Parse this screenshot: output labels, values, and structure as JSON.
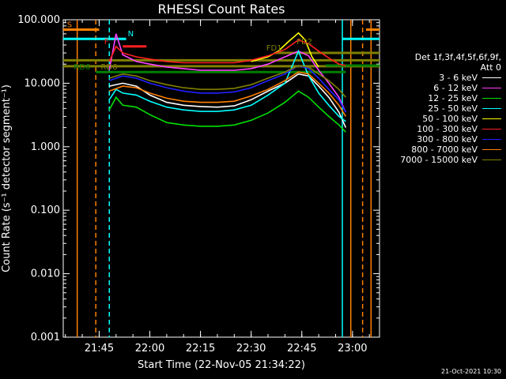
{
  "chart_data": {
    "type": "line",
    "title": "RHESSI Count Rates",
    "xlabel": "Start Time (22-Nov-05 21:34:22)",
    "ylabel": "Count Rate (s⁻¹ detector segment⁻¹)",
    "yscale": "log",
    "ylim": [
      0.001,
      100
    ],
    "xlim": [
      "21:34:22",
      "23:08"
    ],
    "yticks": [
      "0.001",
      "0.010",
      "0.100",
      "1.000",
      "10.000",
      "100.000"
    ],
    "xticks": [
      {
        "t": "21:45",
        "label": "21:45"
      },
      {
        "t": "22:00",
        "label": "22:00"
      },
      {
        "t": "22:15",
        "label": "22:15"
      },
      {
        "t": "22:30",
        "label": "22:30"
      },
      {
        "t": "22:45",
        "label": "22:45"
      },
      {
        "t": "23:00",
        "label": "23:00"
      }
    ],
    "legend_header": [
      "Det 1f,3f,4f,5f,6f,9f,",
      "Att 0"
    ],
    "legend_position": "right",
    "series": [
      {
        "name": "3 - 6 keV",
        "color": "#ffffff",
        "points": [
          [
            "21:48",
            9
          ],
          [
            "21:52",
            10
          ],
          [
            "21:56",
            9
          ],
          [
            "22:00",
            6.5
          ],
          [
            "22:05",
            5
          ],
          [
            "22:10",
            4.5
          ],
          [
            "22:15",
            4.3
          ],
          [
            "22:20",
            4.2
          ],
          [
            "22:25",
            4.4
          ],
          [
            "22:30",
            5.5
          ],
          [
            "22:35",
            7.5
          ],
          [
            "22:40",
            10
          ],
          [
            "22:44",
            14
          ],
          [
            "22:47",
            13
          ],
          [
            "22:50",
            9
          ],
          [
            "22:53",
            6
          ],
          [
            "22:56",
            3.5
          ],
          [
            "22:58",
            2
          ]
        ]
      },
      {
        "name": "6 - 12 keV",
        "color": "#ff40ff",
        "points": [
          [
            "21:48",
            16
          ],
          [
            "21:50",
            60
          ],
          [
            "21:52",
            28
          ],
          [
            "21:56",
            22
          ],
          [
            "22:00",
            20
          ],
          [
            "22:05",
            18
          ],
          [
            "22:10",
            17
          ],
          [
            "22:15",
            16
          ],
          [
            "22:20",
            16
          ],
          [
            "22:25",
            16
          ],
          [
            "22:30",
            17
          ],
          [
            "22:35",
            20
          ],
          [
            "22:40",
            26
          ],
          [
            "22:44",
            32
          ],
          [
            "22:47",
            27
          ],
          [
            "22:50",
            16
          ],
          [
            "22:53",
            10
          ],
          [
            "22:56",
            6
          ],
          [
            "22:58",
            3.5
          ]
        ]
      },
      {
        "name": "12 - 25 keV",
        "color": "#00e000",
        "points": [
          [
            "21:48",
            3.8
          ],
          [
            "21:50",
            6
          ],
          [
            "21:52",
            4.5
          ],
          [
            "21:56",
            4.2
          ],
          [
            "22:00",
            3.2
          ],
          [
            "22:05",
            2.4
          ],
          [
            "22:10",
            2.2
          ],
          [
            "22:15",
            2.1
          ],
          [
            "22:20",
            2.1
          ],
          [
            "22:25",
            2.2
          ],
          [
            "22:30",
            2.6
          ],
          [
            "22:35",
            3.4
          ],
          [
            "22:40",
            5
          ],
          [
            "22:44",
            7.5
          ],
          [
            "22:47",
            6
          ],
          [
            "22:50",
            4.2
          ],
          [
            "22:53",
            3
          ],
          [
            "22:56",
            2.2
          ],
          [
            "22:58",
            1.7
          ]
        ]
      },
      {
        "name": "25 - 50 keV",
        "color": "#00ffff",
        "points": [
          [
            "21:48",
            5.5
          ],
          [
            "21:50",
            8
          ],
          [
            "21:52",
            7
          ],
          [
            "21:56",
            6.5
          ],
          [
            "22:00",
            5.2
          ],
          [
            "22:05",
            4.2
          ],
          [
            "22:10",
            3.8
          ],
          [
            "22:15",
            3.6
          ],
          [
            "22:20",
            3.6
          ],
          [
            "22:25",
            3.8
          ],
          [
            "22:30",
            4.5
          ],
          [
            "22:35",
            6.5
          ],
          [
            "22:40",
            10
          ],
          [
            "22:44",
            32
          ],
          [
            "22:47",
            13
          ],
          [
            "22:50",
            7
          ],
          [
            "22:53",
            4.5
          ],
          [
            "22:56",
            3
          ],
          [
            "22:58",
            2.5
          ]
        ]
      },
      {
        "name": "50 - 100 keV",
        "color": "#ffff00",
        "points": [
          [
            "22:30",
            22
          ],
          [
            "22:35",
            26
          ],
          [
            "22:38",
            32
          ],
          [
            "22:41",
            45
          ],
          [
            "22:44",
            62
          ],
          [
            "22:46",
            48
          ],
          [
            "22:48",
            26
          ],
          [
            "22:50",
            18
          ]
        ]
      },
      {
        "name": "100 - 300 keV",
        "color": "#ff2020",
        "points": [
          [
            "21:48",
            22
          ],
          [
            "21:50",
            38
          ],
          [
            "21:52",
            30
          ],
          [
            "21:56",
            26
          ],
          [
            "22:00",
            24
          ],
          [
            "22:05",
            22
          ],
          [
            "22:10",
            21
          ],
          [
            "22:15",
            21
          ],
          [
            "22:20",
            21
          ],
          [
            "22:25",
            21
          ],
          [
            "22:30",
            23
          ],
          [
            "22:35",
            27
          ],
          [
            "22:40",
            34
          ],
          [
            "22:44",
            48
          ],
          [
            "22:47",
            42
          ],
          [
            "22:50",
            32
          ],
          [
            "22:53",
            25
          ],
          [
            "22:56",
            20
          ],
          [
            "22:58",
            19
          ]
        ]
      },
      {
        "name": "300 - 800 keV",
        "color": "#2020ff",
        "points": [
          [
            "21:48",
            11
          ],
          [
            "21:52",
            13
          ],
          [
            "21:56",
            12
          ],
          [
            "22:00",
            10
          ],
          [
            "22:05",
            8.5
          ],
          [
            "22:10",
            7.5
          ],
          [
            "22:15",
            7
          ],
          [
            "22:20",
            7
          ],
          [
            "22:25",
            7.3
          ],
          [
            "22:30",
            8.5
          ],
          [
            "22:35",
            11
          ],
          [
            "22:40",
            14
          ],
          [
            "22:44",
            19
          ],
          [
            "22:47",
            17
          ],
          [
            "22:50",
            12
          ],
          [
            "22:53",
            8
          ],
          [
            "22:56",
            5.5
          ],
          [
            "22:58",
            3.5
          ]
        ]
      },
      {
        "name": "800 - 7000 keV",
        "color": "#ff8000",
        "points": [
          [
            "21:48",
            7.5
          ],
          [
            "21:52",
            9
          ],
          [
            "21:56",
            8.5
          ],
          [
            "22:00",
            7
          ],
          [
            "22:05",
            5.8
          ],
          [
            "22:10",
            5.2
          ],
          [
            "22:15",
            5
          ],
          [
            "22:20",
            5
          ],
          [
            "22:25",
            5.2
          ],
          [
            "22:30",
            6.3
          ],
          [
            "22:35",
            8
          ],
          [
            "22:40",
            11
          ],
          [
            "22:44",
            15
          ],
          [
            "22:47",
            14
          ],
          [
            "22:50",
            10
          ],
          [
            "22:53",
            7
          ],
          [
            "22:56",
            4.5
          ],
          [
            "22:58",
            3
          ]
        ]
      },
      {
        "name": "7000 - 15000 keV",
        "color": "#808000",
        "points": [
          [
            "21:48",
            12
          ],
          [
            "21:52",
            14
          ],
          [
            "21:56",
            13
          ],
          [
            "22:00",
            11
          ],
          [
            "22:05",
            9.5
          ],
          [
            "22:10",
            8.5
          ],
          [
            "22:15",
            8
          ],
          [
            "22:20",
            8
          ],
          [
            "22:25",
            8.3
          ],
          [
            "22:30",
            9.5
          ],
          [
            "22:35",
            12
          ],
          [
            "22:40",
            15
          ],
          [
            "22:44",
            19
          ],
          [
            "22:47",
            18
          ],
          [
            "22:50",
            14
          ],
          [
            "22:53",
            11
          ],
          [
            "22:56",
            8
          ],
          [
            "22:58",
            6
          ]
        ]
      }
    ],
    "annotations": [
      {
        "text": "S",
        "color": "#ff8000",
        "t": "21:35"
      },
      {
        "text": "N",
        "color": "#00ffff",
        "t": "21:53"
      },
      {
        "text": "F",
        "color": "#ff2020",
        "t": "21:46"
      },
      {
        "text": "FD1",
        "color": "#808000",
        "t": "22:34"
      },
      {
        "text": "FD2",
        "color": "#808000",
        "t": "22:43"
      },
      {
        "text": "RD6",
        "color": "#008000",
        "t": "21:37"
      },
      {
        "text": "RD6",
        "color": "#808000",
        "t": "21:45"
      }
    ],
    "flag_lines": [
      {
        "name": "S",
        "color": "#ff8000",
        "y": 70,
        "segments": [
          [
            "21:34:22",
            "21:45"
          ],
          [
            "23:04",
            "23:08"
          ]
        ]
      },
      {
        "name": "N",
        "color": "#00ffff",
        "y": 50,
        "segments": [
          [
            "21:34:22",
            "21:53"
          ],
          [
            "22:57",
            "23:08"
          ]
        ]
      },
      {
        "name": "F",
        "color": "#ff2020",
        "y": 38,
        "segments": [
          [
            "21:52",
            "21:59"
          ]
        ]
      },
      {
        "name": "FD1",
        "color": "#808000",
        "y": 30,
        "segments": [
          [
            "22:37",
            "23:08"
          ]
        ]
      },
      {
        "name": "RD6-olive",
        "color": "#808000",
        "y": 23,
        "segments": [
          [
            "21:34:22",
            "23:08"
          ]
        ]
      },
      {
        "name": "RD6-mid",
        "color": "#808000",
        "y": 18.5,
        "segments": [
          [
            "21:34:22",
            "23:08"
          ]
        ]
      },
      {
        "name": "RD6",
        "color": "#008000",
        "y": 15,
        "segments": [
          [
            "21:44",
            "22:58"
          ]
        ]
      },
      {
        "name": "RD6-right",
        "color": "#008000",
        "y": 19,
        "segments": [
          [
            "22:52",
            "23:08"
          ]
        ]
      }
    ],
    "vlines": [
      {
        "t": "21:38:30",
        "color": "#ff8000",
        "dash": false
      },
      {
        "t": "21:44",
        "color": "#ff8000",
        "dash": true
      },
      {
        "t": "21:48",
        "color": "#00ffff",
        "dash": true
      },
      {
        "t": "22:57",
        "color": "#00ffff",
        "dash": false
      },
      {
        "t": "22:59:30",
        "color": "#ff8000",
        "dash": false
      },
      {
        "t": "23:03",
        "color": "#ff8000",
        "dash": true
      },
      {
        "t": "23:05:30",
        "color": "#ff8000",
        "dash": false
      }
    ],
    "timestamp": "21-Oct-2021 10:30"
  }
}
